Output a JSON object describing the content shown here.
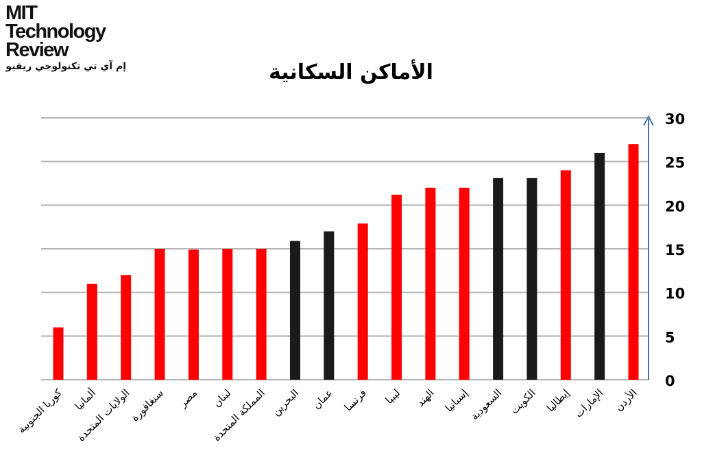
{
  "logo": {
    "line1": "MIT",
    "line2": "Technology",
    "line3": "Review",
    "arabic": "إم آي تي تكنولوجي ريفيو"
  },
  "colors": {
    "red": "#ff0000",
    "black": "#1a1a1a",
    "axis": "#4a6fa5",
    "grid": "#b5b5b5"
  },
  "chart_data": {
    "type": "bar",
    "title": "الأماكن السكانية",
    "xlabel": "",
    "ylabel": "",
    "ylim": [
      0,
      30
    ],
    "yticks": [
      0,
      5,
      10,
      15,
      20,
      25,
      30
    ],
    "grid": true,
    "y_axis_side": "right",
    "categories": [
      "كوريا الجنوبية",
      "ألمانيا",
      "الولايات المتحدة",
      "سنغافورة",
      "مصر",
      "لبنان",
      "المملكة المتحدة",
      "البحرين",
      "عمان",
      "فرنسا",
      "ليبيا",
      "الهند",
      "إسبانيا",
      "السعودية",
      "الكويت",
      "إيطاليا",
      "الإمارات",
      "الأردن"
    ],
    "values": [
      6,
      11,
      12,
      15,
      14.9,
      15,
      15,
      15.9,
      17,
      17.9,
      21.2,
      22,
      22,
      23.1,
      23.1,
      24,
      26,
      27
    ],
    "bar_colors": [
      "red",
      "red",
      "red",
      "red",
      "red",
      "red",
      "red",
      "black",
      "black",
      "red",
      "red",
      "red",
      "red",
      "black",
      "black",
      "red",
      "black",
      "red"
    ]
  }
}
